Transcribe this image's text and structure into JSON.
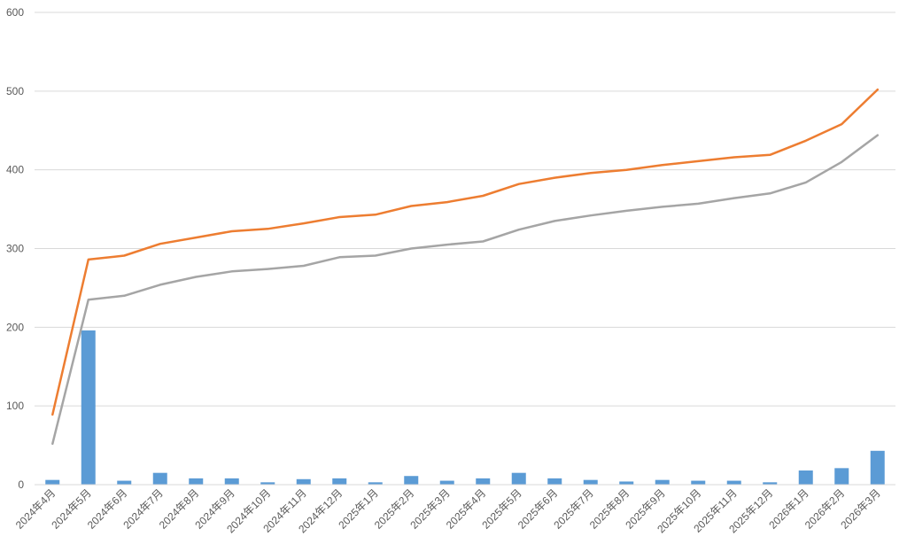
{
  "chart_data": {
    "type": "bar",
    "categories": [
      "2024年4月",
      "2024年5月",
      "2024年6月",
      "2024年7月",
      "2024年8月",
      "2024年9月",
      "2024年10月",
      "2024年11月",
      "2024年12月",
      "2025年1月",
      "2025年2月",
      "2025年3月",
      "2025年4月",
      "2025年5月",
      "2025年6月",
      "2025年7月",
      "2025年8月",
      "2025年9月",
      "2025年10月",
      "2025年11月",
      "2025年12月",
      "2026年1月",
      "2026年2月",
      "2026年3月"
    ],
    "series": [
      {
        "type": "bar",
        "color": "#5B9BD5",
        "values": [
          6,
          196,
          5,
          15,
          8,
          8,
          3,
          7,
          8,
          3,
          11,
          5,
          8,
          15,
          8,
          6,
          4,
          6,
          5,
          5,
          3,
          18,
          21,
          43
        ]
      },
      {
        "type": "line",
        "color": "#ED7D31",
        "values": [
          89,
          286,
          291,
          306,
          314,
          322,
          325,
          332,
          340,
          343,
          354,
          359,
          367,
          382,
          390,
          396,
          400,
          406,
          411,
          416,
          419,
          437,
          458,
          502
        ]
      },
      {
        "type": "line",
        "color": "#A5A5A5",
        "values": [
          52,
          235,
          240,
          254,
          264,
          271,
          274,
          278,
          289,
          291,
          300,
          305,
          309,
          324,
          335,
          342,
          348,
          353,
          357,
          364,
          370,
          384,
          410,
          444
        ]
      }
    ],
    "yticks": [
      0,
      100,
      200,
      300,
      400,
      500,
      600
    ],
    "ylim": [
      0,
      600
    ],
    "grid": true,
    "title": "",
    "xlabel": "",
    "ylabel": ""
  }
}
